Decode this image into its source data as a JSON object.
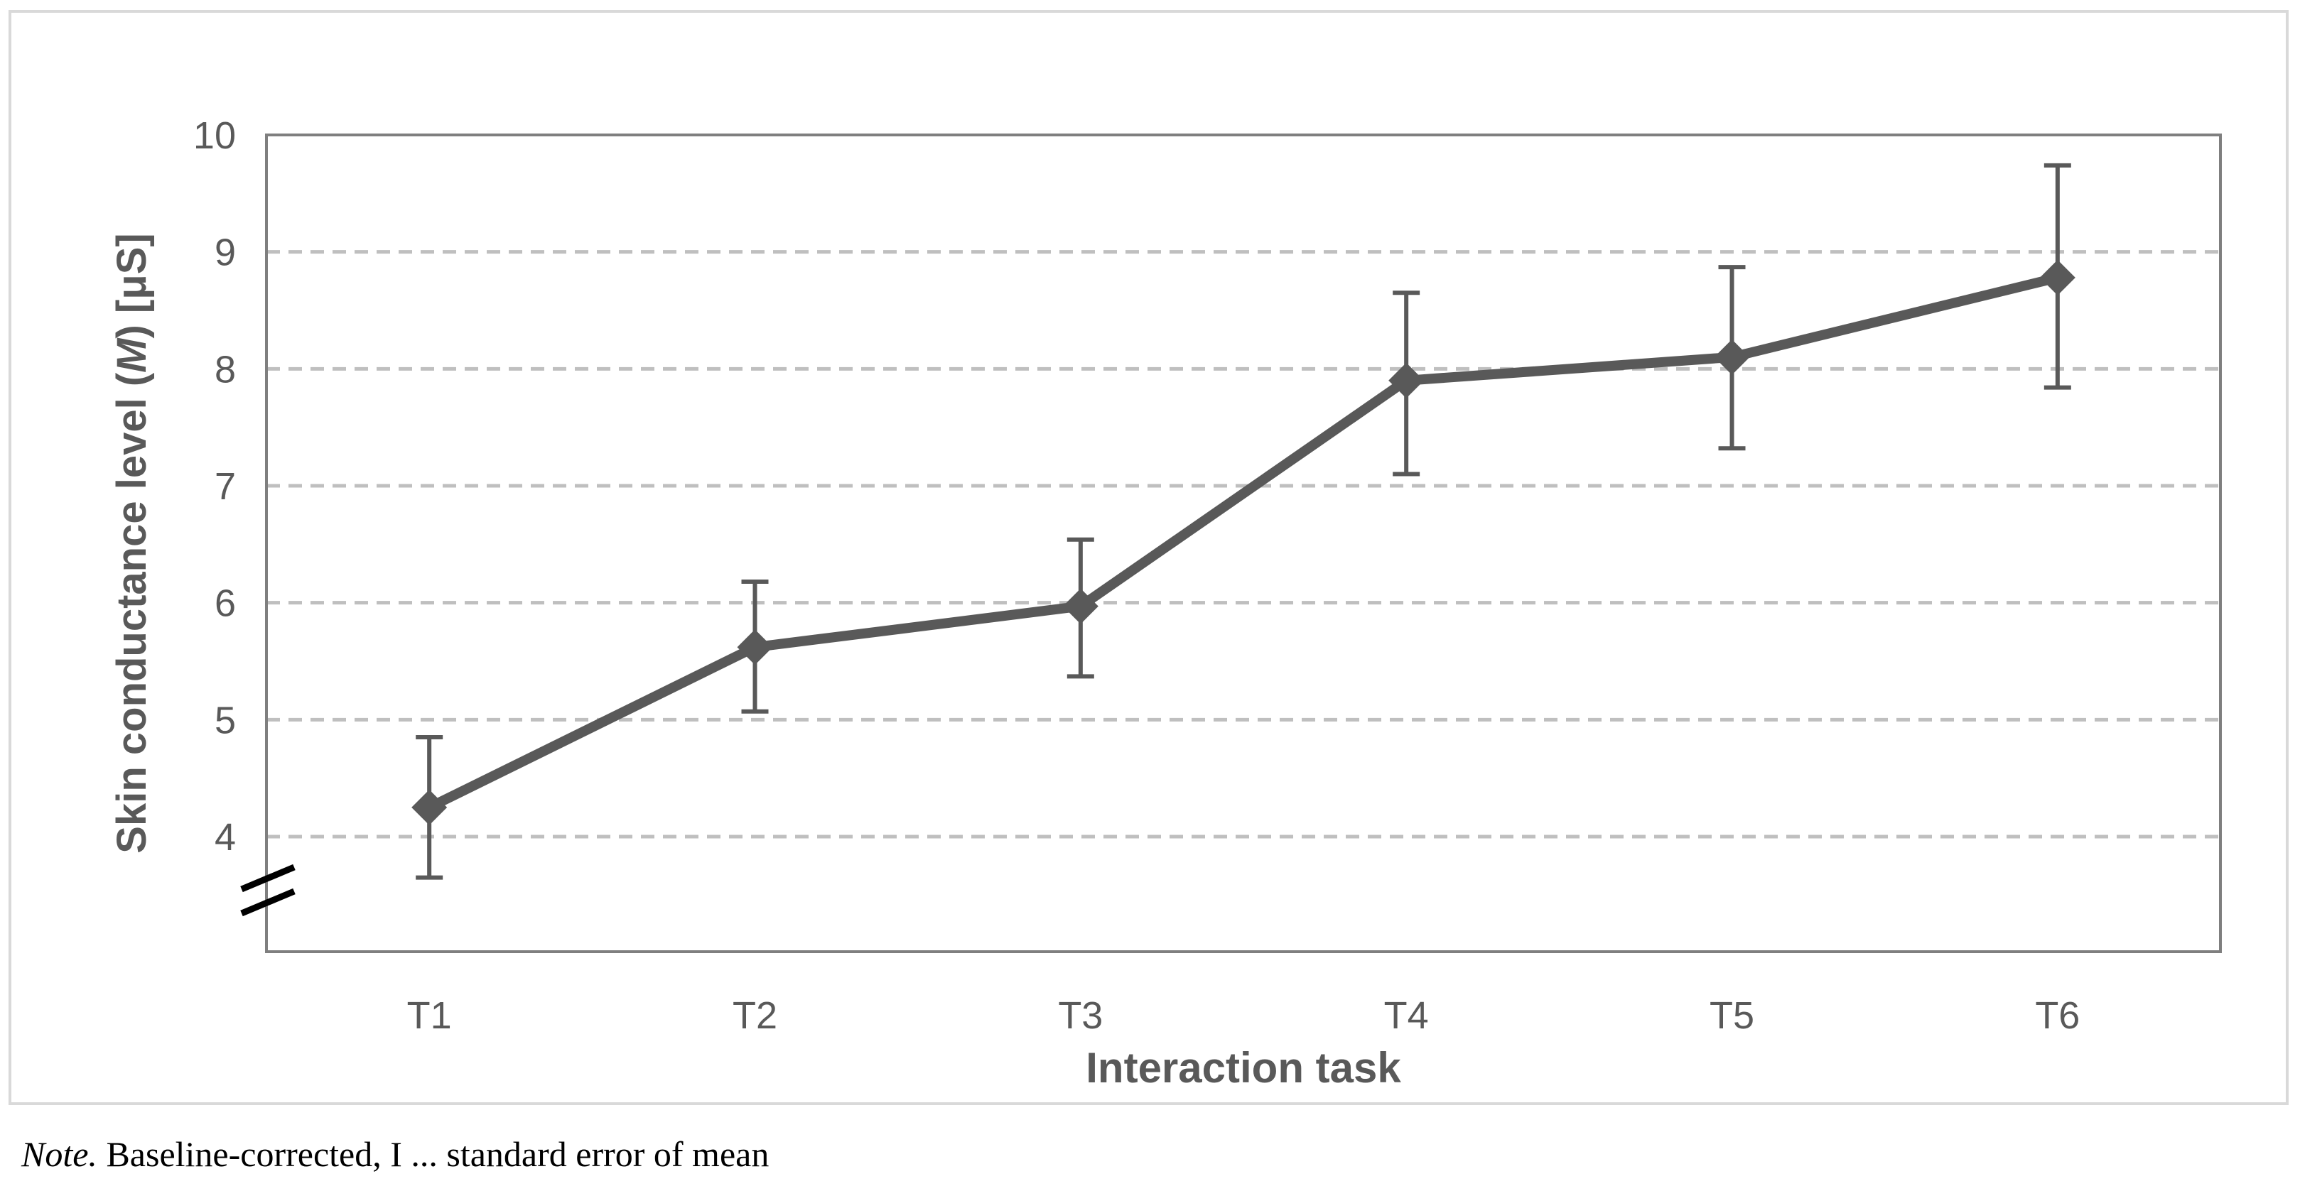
{
  "note": {
    "lead": "Note.",
    "text": " Baseline-corrected, I ... standard error of mean"
  },
  "chart_data": {
    "type": "line",
    "title": "",
    "xlabel": "Interaction task",
    "ylabel": "Skin conductance level (M) [μS]",
    "ylabel_prefix": "Skin conductance level (",
    "ylabel_emphasis": "M",
    "ylabel_suffix": ") [μS]",
    "categories": [
      "T1",
      "T2",
      "T3",
      "T4",
      "T5",
      "T6"
    ],
    "series": [
      {
        "name": "Skin conductance level (M)",
        "values": [
          4.25,
          5.62,
          5.97,
          7.9,
          8.1,
          8.78
        ],
        "error_upper": [
          4.85,
          6.18,
          6.54,
          8.65,
          8.87,
          9.74
        ],
        "error_lower": [
          3.65,
          5.07,
          5.37,
          7.1,
          7.32,
          7.84
        ]
      }
    ],
    "yticks": [
      4,
      5,
      6,
      7,
      8,
      9,
      10
    ],
    "ylim": [
      3,
      10
    ],
    "axis_break": true,
    "grid": "horizontal-dashed",
    "legend_position": "none",
    "marker": "diamond",
    "colors": {
      "series": "#595959",
      "error_bar": "#595959",
      "gridline": "#bfbfbf",
      "plot_border": "#7f7f7f",
      "tick_text": "#595959",
      "axis_title_text": "#595959",
      "axis_break_mark": "#000000",
      "figure_border": "#d9d9d9",
      "background": "#ffffff"
    }
  }
}
